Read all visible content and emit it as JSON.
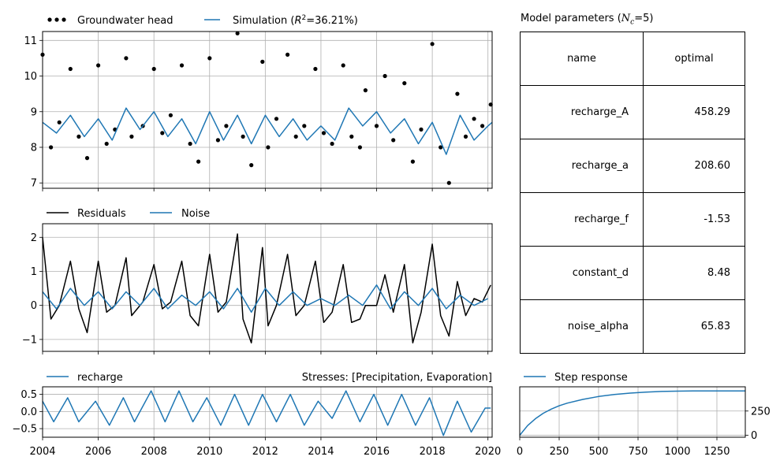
{
  "head_panel": {
    "legend_obs": "Groundwater head",
    "legend_sim_prefix": "Simulation (",
    "legend_sim_r2": "R",
    "legend_sim_sup": "2",
    "legend_sim_suffix": "=36.21%)",
    "yticks": [
      "7",
      "8",
      "9",
      "10",
      "11"
    ]
  },
  "resid_panel": {
    "legend_resid": "Residuals",
    "legend_noise": "Noise",
    "yticks": [
      "−1",
      "0",
      "1",
      "2"
    ]
  },
  "stress_panel": {
    "legend_recharge": "recharge",
    "stresses_label": "Stresses: [Precipitation, Evaporation]",
    "yticks": [
      "−0.5",
      "0.0",
      "0.5"
    ],
    "xticks": [
      "2004",
      "2006",
      "2008",
      "2010",
      "2012",
      "2014",
      "2016",
      "2018",
      "2020"
    ]
  },
  "step_panel": {
    "legend_step": "Step response",
    "yticks": [
      "0",
      "250"
    ],
    "xticks": [
      "0",
      "250",
      "500",
      "750",
      "1000",
      "1250"
    ]
  },
  "params": {
    "title_prefix": "Model parameters (",
    "title_n": "N",
    "title_sub": "c",
    "title_suffix": "=5)",
    "col_name": "name",
    "col_optimal": "optimal",
    "rows": [
      {
        "name": "recharge_A",
        "value": "458.29"
      },
      {
        "name": "recharge_a",
        "value": "208.60"
      },
      {
        "name": "recharge_f",
        "value": "-1.53"
      },
      {
        "name": "constant_d",
        "value": "8.48"
      },
      {
        "name": "noise_alpha",
        "value": "65.83"
      }
    ]
  },
  "colors": {
    "simulation": "#1f77b4",
    "observed": "#000000",
    "grid": "#b0b0b0"
  },
  "chart_data": [
    {
      "type": "scatter",
      "title": "",
      "xlim": [
        2004.0,
        2020.15
      ],
      "ylim": [
        6.85,
        11.25
      ],
      "grid": true,
      "legend": "top-left",
      "series": [
        {
          "name": "Groundwater head",
          "style": "dots",
          "x": [
            2004.0,
            2004.3,
            2004.6,
            2005.0,
            2005.3,
            2005.6,
            2006.0,
            2006.3,
            2006.6,
            2007.0,
            2007.2,
            2007.6,
            2008.0,
            2008.3,
            2008.6,
            2009.0,
            2009.3,
            2009.6,
            2010.0,
            2010.3,
            2010.6,
            2011.0,
            2011.2,
            2011.5,
            2011.9,
            2012.1,
            2012.4,
            2012.8,
            2013.1,
            2013.4,
            2013.8,
            2014.1,
            2014.4,
            2014.8,
            2015.1,
            2015.4,
            2015.6,
            2016.0,
            2016.3,
            2016.6,
            2017.0,
            2017.3,
            2017.6,
            2018.0,
            2018.3,
            2018.6,
            2018.9,
            2019.2,
            2019.5,
            2019.8,
            2020.1
          ],
          "y": [
            10.6,
            8.0,
            8.7,
            10.2,
            8.3,
            7.7,
            10.3,
            8.1,
            8.5,
            10.5,
            8.3,
            8.6,
            10.2,
            8.4,
            8.9,
            10.3,
            8.1,
            7.6,
            10.5,
            8.2,
            8.6,
            11.2,
            8.3,
            7.5,
            10.4,
            8.0,
            8.8,
            10.6,
            8.3,
            8.6,
            10.2,
            8.4,
            8.1,
            10.3,
            8.3,
            8.0,
            9.6,
            8.6,
            10.0,
            8.2,
            9.8,
            7.6,
            8.5,
            10.9,
            8.0,
            7.0,
            9.5,
            8.3,
            8.8,
            8.6,
            9.2
          ]
        },
        {
          "name": "Simulation",
          "style": "line",
          "x": [
            2004.0,
            2004.5,
            2005.0,
            2005.5,
            2006.0,
            2006.5,
            2007.0,
            2007.5,
            2008.0,
            2008.5,
            2009.0,
            2009.5,
            2010.0,
            2010.5,
            2011.0,
            2011.5,
            2012.0,
            2012.5,
            2013.0,
            2013.5,
            2014.0,
            2014.5,
            2015.0,
            2015.5,
            2016.0,
            2016.5,
            2017.0,
            2017.5,
            2018.0,
            2018.5,
            2019.0,
            2019.5,
            2020.0,
            2020.15
          ],
          "y": [
            8.7,
            8.4,
            8.9,
            8.3,
            8.8,
            8.2,
            9.1,
            8.5,
            9.0,
            8.3,
            8.8,
            8.1,
            9.0,
            8.2,
            8.9,
            8.1,
            8.9,
            8.3,
            8.8,
            8.2,
            8.6,
            8.2,
            9.1,
            8.6,
            9.0,
            8.4,
            8.8,
            8.1,
            8.7,
            7.8,
            8.9,
            8.2,
            8.6,
            8.7
          ]
        }
      ]
    },
    {
      "type": "line",
      "title": "",
      "xlim": [
        2004.0,
        2020.15
      ],
      "ylim": [
        -1.35,
        2.4
      ],
      "grid": true,
      "legend": "top-left",
      "series": [
        {
          "name": "Residuals",
          "x": [
            2004.0,
            2004.3,
            2004.6,
            2005.0,
            2005.3,
            2005.6,
            2006.0,
            2006.3,
            2006.6,
            2007.0,
            2007.2,
            2007.6,
            2008.0,
            2008.3,
            2008.6,
            2009.0,
            2009.3,
            2009.6,
            2010.0,
            2010.3,
            2010.6,
            2011.0,
            2011.2,
            2011.5,
            2011.9,
            2012.1,
            2012.4,
            2012.8,
            2013.1,
            2013.4,
            2013.8,
            2014.1,
            2014.4,
            2014.8,
            2015.1,
            2015.4,
            2015.6,
            2016.0,
            2016.3,
            2016.6,
            2017.0,
            2017.3,
            2017.6,
            2018.0,
            2018.3,
            2018.6,
            2018.9,
            2019.2,
            2019.5,
            2019.8,
            2020.1
          ],
          "y": [
            2.0,
            -0.4,
            0.0,
            1.3,
            -0.1,
            -0.8,
            1.3,
            -0.2,
            0.0,
            1.4,
            -0.3,
            0.1,
            1.2,
            -0.1,
            0.1,
            1.3,
            -0.3,
            -0.6,
            1.5,
            -0.2,
            0.1,
            2.1,
            -0.4,
            -1.1,
            1.7,
            -0.6,
            0.0,
            1.5,
            -0.3,
            0.0,
            1.3,
            -0.5,
            -0.2,
            1.2,
            -0.5,
            -0.4,
            0.0,
            0.0,
            0.9,
            -0.2,
            1.2,
            -1.1,
            -0.2,
            1.8,
            -0.3,
            -0.9,
            0.7,
            -0.3,
            0.2,
            0.1,
            0.6
          ]
        },
        {
          "name": "Noise",
          "x": [
            2004.0,
            2004.5,
            2005.0,
            2005.5,
            2006.0,
            2006.5,
            2007.0,
            2007.5,
            2008.0,
            2008.5,
            2009.0,
            2009.5,
            2010.0,
            2010.5,
            2011.0,
            2011.5,
            2012.0,
            2012.5,
            2013.0,
            2013.5,
            2014.0,
            2014.5,
            2015.0,
            2015.5,
            2016.0,
            2016.5,
            2017.0,
            2017.5,
            2018.0,
            2018.5,
            2019.0,
            2019.5,
            2020.0
          ],
          "y": [
            0.4,
            -0.1,
            0.5,
            0.0,
            0.4,
            -0.1,
            0.4,
            0.0,
            0.5,
            -0.1,
            0.3,
            0.0,
            0.4,
            -0.1,
            0.5,
            -0.2,
            0.5,
            0.0,
            0.4,
            0.0,
            0.2,
            0.0,
            0.3,
            0.0,
            0.6,
            -0.1,
            0.4,
            0.0,
            0.5,
            -0.1,
            0.3,
            0.0,
            0.2
          ]
        }
      ]
    },
    {
      "type": "line",
      "title": "",
      "xlabel": "",
      "xlim": [
        2004.0,
        2020.15
      ],
      "ylim": [
        -0.75,
        0.72
      ],
      "grid": true,
      "legend": "top-left",
      "series": [
        {
          "name": "recharge",
          "x": [
            2004.0,
            2004.4,
            2004.9,
            2005.3,
            2005.9,
            2006.4,
            2006.9,
            2007.3,
            2007.9,
            2008.4,
            2008.9,
            2009.4,
            2009.9,
            2010.4,
            2010.9,
            2011.4,
            2011.9,
            2012.4,
            2012.9,
            2013.4,
            2013.9,
            2014.4,
            2014.9,
            2015.4,
            2015.9,
            2016.4,
            2016.9,
            2017.4,
            2017.9,
            2018.4,
            2018.9,
            2019.4,
            2019.9,
            2020.1
          ],
          "y": [
            0.3,
            -0.3,
            0.4,
            -0.3,
            0.3,
            -0.4,
            0.4,
            -0.3,
            0.6,
            -0.3,
            0.6,
            -0.3,
            0.4,
            -0.4,
            0.5,
            -0.4,
            0.5,
            -0.3,
            0.5,
            -0.4,
            0.3,
            -0.2,
            0.6,
            -0.3,
            0.5,
            -0.4,
            0.5,
            -0.4,
            0.4,
            -0.7,
            0.3,
            -0.6,
            0.1,
            0.1
          ]
        }
      ]
    },
    {
      "type": "line",
      "title": "",
      "xlim": [
        0,
        1430
      ],
      "ylim": [
        -20,
        500
      ],
      "grid": true,
      "legend": "top-left",
      "series": [
        {
          "name": "Step response",
          "x": [
            0,
            50,
            100,
            150,
            200,
            250,
            300,
            400,
            500,
            600,
            700,
            800,
            900,
            1000,
            1100,
            1200,
            1300,
            1430
          ],
          "y": [
            0,
            100,
            172,
            228,
            270,
            304,
            331,
            370,
            400,
            420,
            435,
            445,
            452,
            455,
            457,
            458,
            458,
            458
          ]
        }
      ]
    }
  ]
}
